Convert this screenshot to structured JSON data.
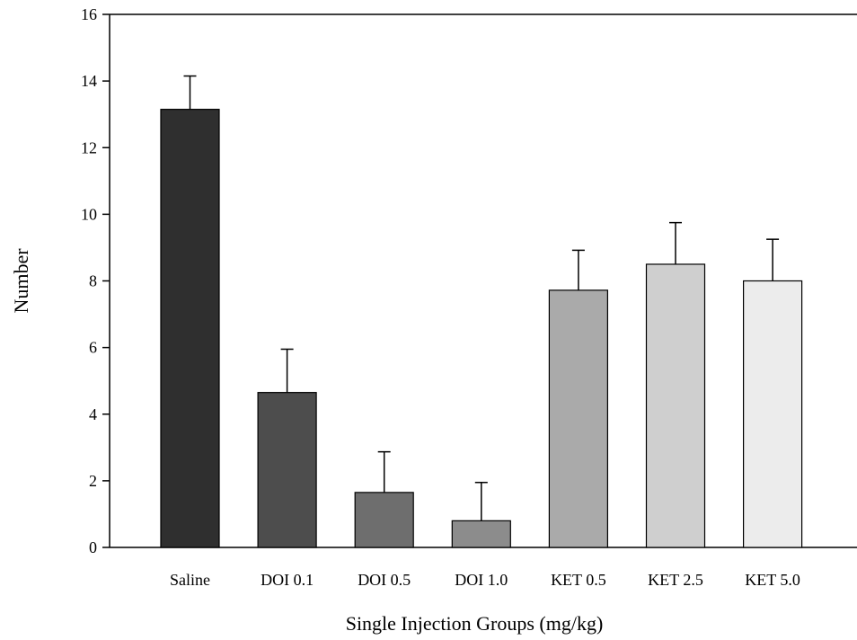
{
  "chart_data": {
    "type": "bar",
    "title": "",
    "xlabel": "Single Injection Groups (mg/kg)",
    "ylabel": "Number",
    "ylim": [
      0,
      16
    ],
    "yticks": [
      0,
      2,
      4,
      6,
      8,
      10,
      12,
      14,
      16
    ],
    "grid": false,
    "error_bars": "upper",
    "categories": [
      "Saline",
      "DOI 0.1",
      "DOI 0.5",
      "DOI 1.0",
      "KET 0.5",
      "KET 2.5",
      "KET 5.0"
    ],
    "values": [
      13.15,
      4.65,
      1.65,
      0.8,
      7.72,
      8.5,
      8.0
    ],
    "errors": [
      1.0,
      1.3,
      1.22,
      1.15,
      1.2,
      1.25,
      1.25
    ],
    "colors": [
      "#2f2f2f",
      "#4d4d4d",
      "#6e6e6e",
      "#8c8c8c",
      "#aaaaaa",
      "#cfcfcf",
      "#ececec"
    ]
  }
}
